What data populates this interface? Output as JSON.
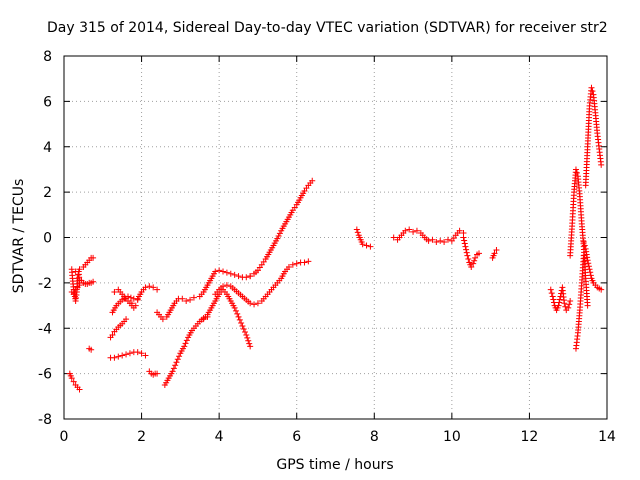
{
  "chart_data": {
    "type": "scatter",
    "title": "Day 315 of 2014, Sidereal Day-to-day VTEC variation (SDTVAR) for receiver str2",
    "xlabel": "GPS time / hours",
    "ylabel": "SDTVAR / TECUs",
    "xlim": [
      0,
      14
    ],
    "ylim": [
      -8,
      8
    ],
    "xticks": [
      0,
      2,
      4,
      6,
      8,
      10,
      12,
      14
    ],
    "yticks": [
      -8,
      -6,
      -4,
      -2,
      0,
      2,
      4,
      6,
      8
    ],
    "grid": true,
    "marker": "+",
    "marker_color": "#ff0000",
    "segments": [
      {
        "x": [
          0.15,
          0.2,
          0.25,
          0.3,
          0.35,
          0.4
        ],
        "y": [
          -6.0,
          -6.2,
          -6.35,
          -6.5,
          -6.6,
          -6.7
        ]
      },
      {
        "x": [
          0.2,
          0.22,
          0.25,
          0.28,
          0.3,
          0.33,
          0.35,
          0.38,
          0.4
        ],
        "y": [
          -1.4,
          -1.8,
          -2.3,
          -2.6,
          -2.8,
          -2.4,
          -1.8,
          -1.5,
          -2.0
        ]
      },
      {
        "x": [
          0.2,
          0.25,
          0.3,
          0.35,
          0.4
        ],
        "y": [
          -2.4,
          -2.5,
          -2.3,
          -2.2,
          -2.1
        ]
      },
      {
        "x": [
          0.3,
          0.4,
          0.5,
          0.6,
          0.65,
          0.7,
          0.75
        ],
        "y": [
          -1.5,
          -1.4,
          -1.3,
          -1.1,
          -1.0,
          -0.9,
          -0.9
        ]
      },
      {
        "x": [
          0.45,
          0.5,
          0.55,
          0.6,
          0.65,
          0.7,
          0.75
        ],
        "y": [
          -1.9,
          -2.0,
          -2.05,
          -2.05,
          -2.0,
          -2.0,
          -1.95
        ]
      },
      {
        "x": [
          0.65,
          0.7
        ],
        "y": [
          -4.9,
          -4.95
        ]
      },
      {
        "x": [
          1.2,
          1.3,
          1.4,
          1.5,
          1.6,
          1.7,
          1.8,
          1.9,
          2.0,
          2.1
        ],
        "y": [
          -5.3,
          -5.3,
          -5.25,
          -5.2,
          -5.15,
          -5.1,
          -5.05,
          -5.05,
          -5.1,
          -5.2
        ]
      },
      {
        "x": [
          1.2,
          1.25,
          1.3,
          1.35,
          1.4,
          1.5,
          1.6
        ],
        "y": [
          -4.4,
          -4.3,
          -4.15,
          -4.05,
          -3.95,
          -3.8,
          -3.6
        ]
      },
      {
        "x": [
          1.25,
          1.35,
          1.5,
          1.65,
          1.8,
          1.9
        ],
        "y": [
          -3.3,
          -3.0,
          -2.75,
          -2.6,
          -2.7,
          -2.75
        ]
      },
      {
        "x": [
          1.3,
          1.4,
          1.5,
          1.6,
          1.7,
          1.8
        ],
        "y": [
          -2.4,
          -2.3,
          -2.5,
          -2.7,
          -2.9,
          -3.1
        ]
      },
      {
        "x": [
          1.55,
          1.65,
          1.75,
          1.85
        ],
        "y": [
          -2.7,
          -2.8,
          -2.9,
          -3.0
        ]
      },
      {
        "x": [
          1.9,
          2.0,
          2.1,
          2.2,
          2.3,
          2.4
        ],
        "y": [
          -2.7,
          -2.4,
          -2.2,
          -2.15,
          -2.2,
          -2.3
        ]
      },
      {
        "x": [
          2.2,
          2.25,
          2.3,
          2.35,
          2.4
        ],
        "y": [
          -5.9,
          -6.0,
          -6.05,
          -6.0,
          -6.0
        ]
      },
      {
        "x": [
          2.4,
          2.5,
          2.55
        ],
        "y": [
          -3.3,
          -3.5,
          -3.6
        ]
      },
      {
        "x": [
          2.6,
          2.7,
          2.8,
          2.9,
          3.0,
          3.1,
          3.2,
          3.3,
          3.4,
          3.5,
          3.6,
          3.7
        ],
        "y": [
          -6.5,
          -6.2,
          -5.9,
          -5.5,
          -5.1,
          -4.8,
          -4.4,
          -4.1,
          -3.9,
          -3.7,
          -3.55,
          -3.5
        ]
      },
      {
        "x": [
          2.65,
          2.75,
          2.85,
          2.95,
          3.05,
          3.15,
          3.25,
          3.35
        ],
        "y": [
          -3.5,
          -3.2,
          -2.9,
          -2.7,
          -2.7,
          -2.8,
          -2.75,
          -2.65
        ]
      },
      {
        "x": [
          3.5,
          3.6,
          3.7,
          3.8,
          3.9,
          4.0,
          4.1,
          4.2,
          4.3,
          4.4,
          4.5,
          4.6,
          4.7,
          4.8
        ],
        "y": [
          -2.6,
          -2.4,
          -2.1,
          -1.8,
          -1.5,
          -1.45,
          -1.5,
          -1.55,
          -1.6,
          -1.65,
          -1.7,
          -1.75,
          -1.75,
          -1.7
        ]
      },
      {
        "x": [
          3.6,
          3.7,
          3.8,
          3.9,
          4.0,
          4.1,
          4.2,
          4.3,
          4.4,
          4.5,
          4.6,
          4.7,
          4.8
        ],
        "y": [
          -3.6,
          -3.4,
          -3.1,
          -2.8,
          -2.5,
          -2.3,
          -2.5,
          -2.8,
          -3.1,
          -3.5,
          -3.9,
          -4.3,
          -4.8
        ]
      },
      {
        "x": [
          3.9,
          4.0,
          4.1,
          4.2,
          4.3,
          4.4,
          4.5,
          4.6,
          4.7,
          4.8,
          4.9,
          5.0,
          5.1,
          5.2,
          5.3,
          5.4,
          5.5,
          5.6,
          5.7,
          5.8,
          5.9,
          6.0,
          6.1,
          6.2,
          6.3
        ],
        "y": [
          -2.5,
          -2.3,
          -2.15,
          -2.1,
          -2.15,
          -2.3,
          -2.45,
          -2.6,
          -2.75,
          -2.9,
          -2.95,
          -2.9,
          -2.8,
          -2.6,
          -2.4,
          -2.2,
          -2.0,
          -1.8,
          -1.5,
          -1.3,
          -1.2,
          -1.15,
          -1.1,
          -1.1,
          -1.05
        ]
      },
      {
        "x": [
          4.8,
          4.9,
          5.0,
          5.1,
          5.2,
          5.3,
          5.4,
          5.5,
          5.6,
          5.7,
          5.8,
          5.9,
          6.0,
          6.1,
          6.2,
          6.3,
          6.4
        ],
        "y": [
          -1.7,
          -1.6,
          -1.45,
          -1.2,
          -0.95,
          -0.65,
          -0.35,
          -0.05,
          0.3,
          0.6,
          0.9,
          1.2,
          1.45,
          1.75,
          2.05,
          2.3,
          2.5
        ]
      },
      {
        "x": [
          7.55,
          7.6,
          7.65,
          7.7,
          7.8,
          7.9
        ],
        "y": [
          0.35,
          0.1,
          -0.1,
          -0.3,
          -0.35,
          -0.4
        ]
      },
      {
        "x": [
          8.5,
          8.6,
          8.7,
          8.8,
          8.9,
          9.0,
          9.1,
          9.2,
          9.3,
          9.4,
          9.5,
          9.6,
          9.7,
          9.8,
          9.9,
          10.0,
          10.1,
          10.2,
          10.3
        ],
        "y": [
          0.0,
          -0.1,
          0.1,
          0.3,
          0.35,
          0.25,
          0.3,
          0.2,
          0.0,
          -0.15,
          -0.1,
          -0.2,
          -0.15,
          -0.2,
          -0.1,
          -0.15,
          0.1,
          0.3,
          0.2
        ]
      },
      {
        "x": [
          10.3,
          10.35,
          10.4,
          10.45,
          10.5,
          10.55,
          10.6,
          10.65,
          10.7
        ],
        "y": [
          0.0,
          -0.4,
          -0.8,
          -1.1,
          -1.3,
          -1.15,
          -0.9,
          -0.75,
          -0.7
        ]
      },
      {
        "x": [
          11.05,
          11.1,
          11.15
        ],
        "y": [
          -0.9,
          -0.7,
          -0.55
        ]
      },
      {
        "x": [
          12.55,
          12.6,
          12.65,
          12.7,
          12.75,
          12.8,
          12.85,
          12.9,
          12.95,
          13.0,
          13.05
        ],
        "y": [
          -2.3,
          -2.6,
          -3.0,
          -3.2,
          -3.0,
          -2.6,
          -2.2,
          -2.9,
          -3.2,
          -3.1,
          -2.8
        ]
      },
      {
        "x": [
          13.05,
          13.1,
          13.15,
          13.2,
          13.25,
          13.3,
          13.35,
          13.4,
          13.45,
          13.5
        ],
        "y": [
          -0.8,
          0.5,
          2.0,
          3.0,
          2.7,
          1.8,
          0.6,
          -0.4,
          -1.8,
          -3.0
        ]
      },
      {
        "x": [
          13.2,
          13.25,
          13.3,
          13.35,
          13.4
        ],
        "y": [
          -4.9,
          -4.2,
          -3.2,
          -2.0,
          -0.8
        ]
      },
      {
        "x": [
          13.4,
          13.45,
          13.5,
          13.55,
          13.6,
          13.65,
          13.7,
          13.75,
          13.8,
          13.85
        ],
        "y": [
          -0.2,
          -0.5,
          -1.0,
          -1.4,
          -1.8,
          -2.0,
          -2.1,
          -2.2,
          -2.25,
          -2.3
        ]
      },
      {
        "x": [
          13.45,
          13.5,
          13.55,
          13.6,
          13.65,
          13.7,
          13.75,
          13.8,
          13.85
        ],
        "y": [
          2.3,
          4.0,
          5.8,
          6.6,
          6.3,
          5.5,
          4.6,
          3.9,
          3.2
        ]
      }
    ]
  }
}
